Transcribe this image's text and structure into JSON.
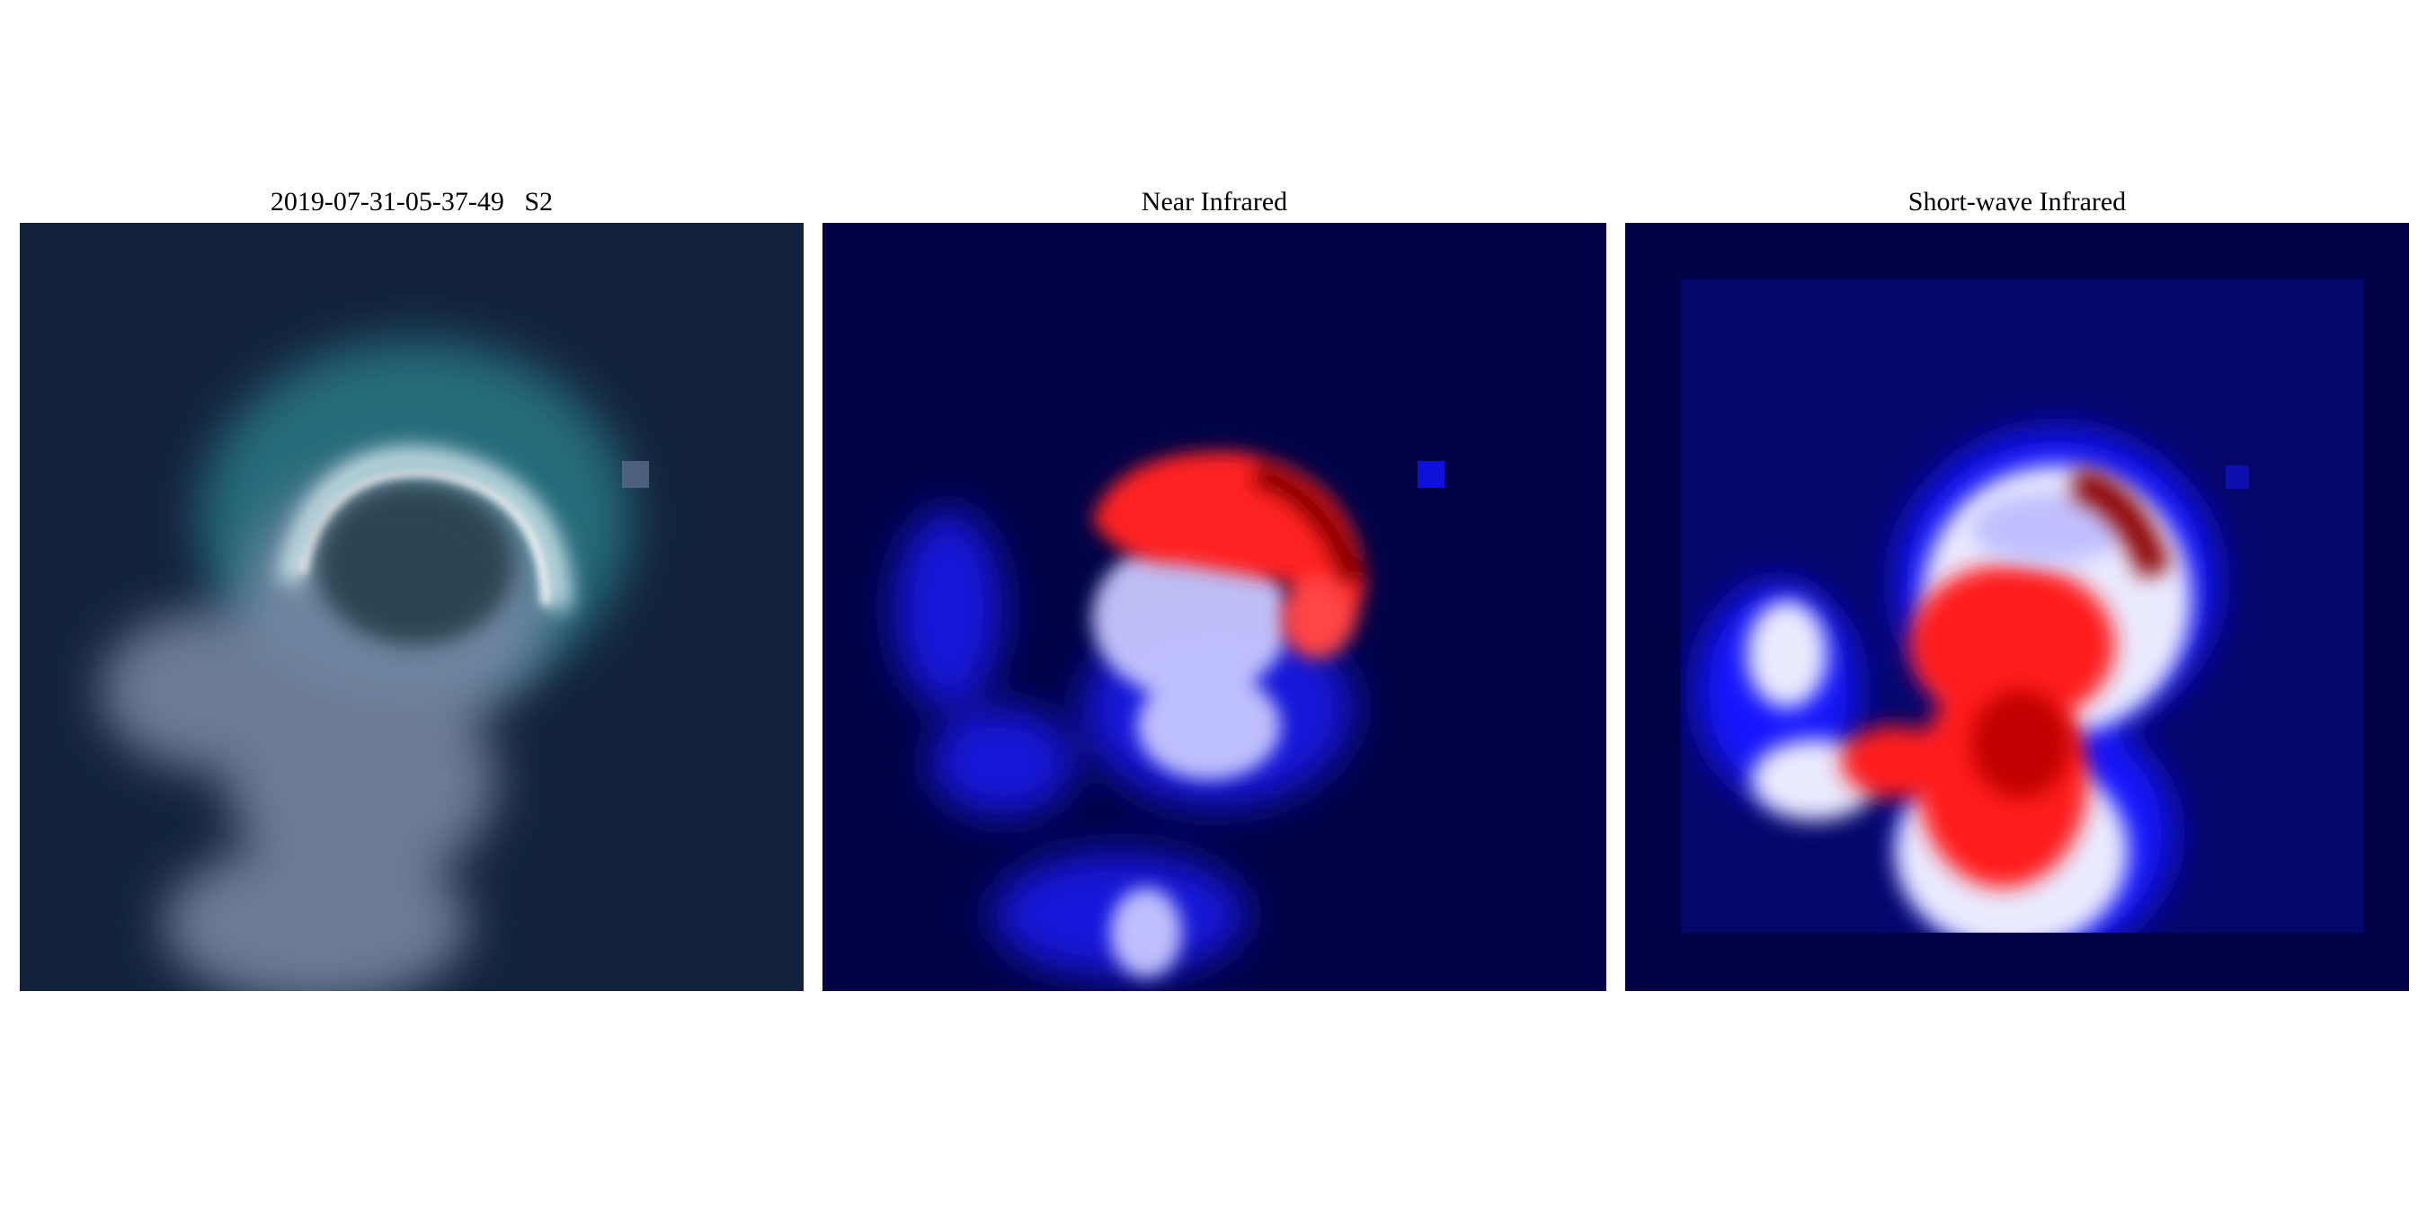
{
  "panels": [
    {
      "title": "2019-07-31-05-37-49   S2",
      "image": "true-color satellite image of cloud plume over dark ocean"
    },
    {
      "title": "Near Infrared",
      "image": "false-color near infrared band heatmap (blue-white-red)"
    },
    {
      "title": "Short-wave Infrared",
      "image": "false-color short-wave infrared band heatmap (blue-white-red)"
    }
  ],
  "colors": {
    "ocean": "#13233c",
    "heat_low": "#020347",
    "heat_mid": "#ffffff",
    "heat_high": "#8b0000"
  }
}
